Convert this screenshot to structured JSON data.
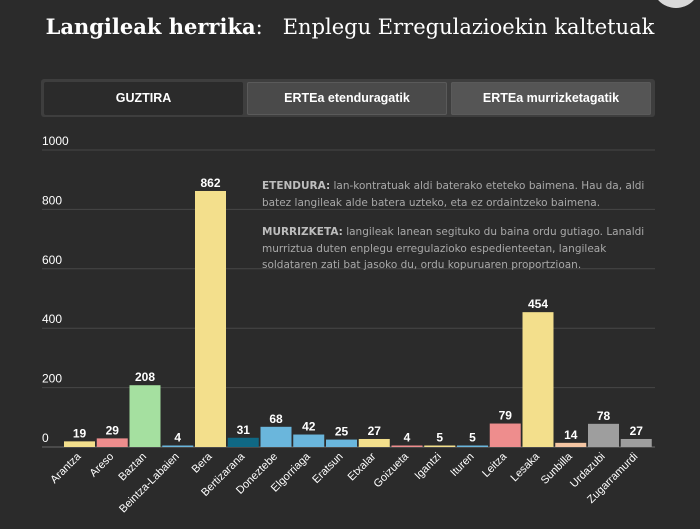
{
  "title": {
    "bold": "Langileak herrika",
    "colon": ":",
    "rest": "Enplegu Erregulazioekin kaltetuak"
  },
  "tabs": [
    {
      "label": "GUZTIRA"
    },
    {
      "label": "ERTEa etenduragatik"
    },
    {
      "label": "ERTEa murrizketagatik"
    }
  ],
  "notes": {
    "etendura_term": "ETENDURA:",
    "etendura_text": "lan-kontratuak aldi baterako eteteko baimena. Hau da, aldi batez langileak alde batera uzteko, eta ez ordaintzeko baimena.",
    "murrizketa_term": "MURRIZKETA:",
    "murrizketa_text": "langileak lanean segituko du baina ordu gutiago. Lanaldi murriztua duten enplegu erregulazioko espedienteetan, langileak soldataren zati bat jasoko du, ordu kopuruaren proportzioan."
  },
  "chart_data": {
    "type": "bar",
    "categories": [
      "Arantza",
      "Areso",
      "Baztan",
      "Beintza-Labaien",
      "Bera",
      "Bertizarana",
      "Doneztebe",
      "Elgorriaga",
      "Eratsun",
      "Etxalar",
      "Goizueta",
      "Igantzi",
      "Ituren",
      "Leitza",
      "Lesaka",
      "Sunbilla",
      "Urdazubi",
      "Zugarramurdi"
    ],
    "values": [
      19,
      29,
      208,
      4,
      862,
      31,
      68,
      42,
      25,
      27,
      4,
      5,
      5,
      79,
      454,
      14,
      78,
      27
    ],
    "colors": [
      "#f3df8c",
      "#ee8d8d",
      "#a5e0a0",
      "#6ab6dc",
      "#f3df8c",
      "#0f6884",
      "#6ab6dc",
      "#6ab6dc",
      "#6ab6dc",
      "#f3df8c",
      "#ee8d8d",
      "#f3df8c",
      "#6ab6dc",
      "#ee8d8d",
      "#f3df8c",
      "#f5c6a3",
      "#9e9e9e",
      "#9e9e9e"
    ],
    "yticks": [
      "0",
      "200",
      "400",
      "600",
      "800",
      "1000"
    ],
    "ylim": [
      0,
      1000
    ],
    "grid": true,
    "xlabel": "",
    "ylabel": ""
  }
}
